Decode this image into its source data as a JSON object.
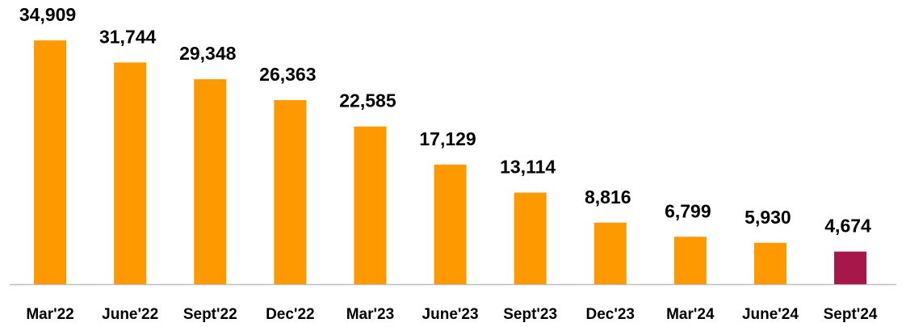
{
  "chart_data": {
    "type": "bar",
    "categories": [
      "Mar'22",
      "June'22",
      "Sept'22",
      "Dec'22",
      "Mar'23",
      "June'23",
      "Sept'23",
      "Dec'23",
      "Mar'24",
      "June'24",
      "Sept'24"
    ],
    "values": [
      34909,
      31744,
      29348,
      26363,
      22585,
      17129,
      13114,
      8816,
      6799,
      5930,
      4674
    ],
    "value_labels": [
      "34,909",
      "31,744",
      "29,348",
      "26,363",
      "22,585",
      "17,129",
      "13,114",
      "8,816",
      "6,799",
      "5,930",
      "4,674"
    ],
    "colors": [
      "#FF9900",
      "#FF9900",
      "#FF9900",
      "#FF9900",
      "#FF9900",
      "#FF9900",
      "#FF9900",
      "#FF9900",
      "#FF9900",
      "#FF9900",
      "#A8174A"
    ],
    "ylim": [
      0,
      40000
    ]
  }
}
